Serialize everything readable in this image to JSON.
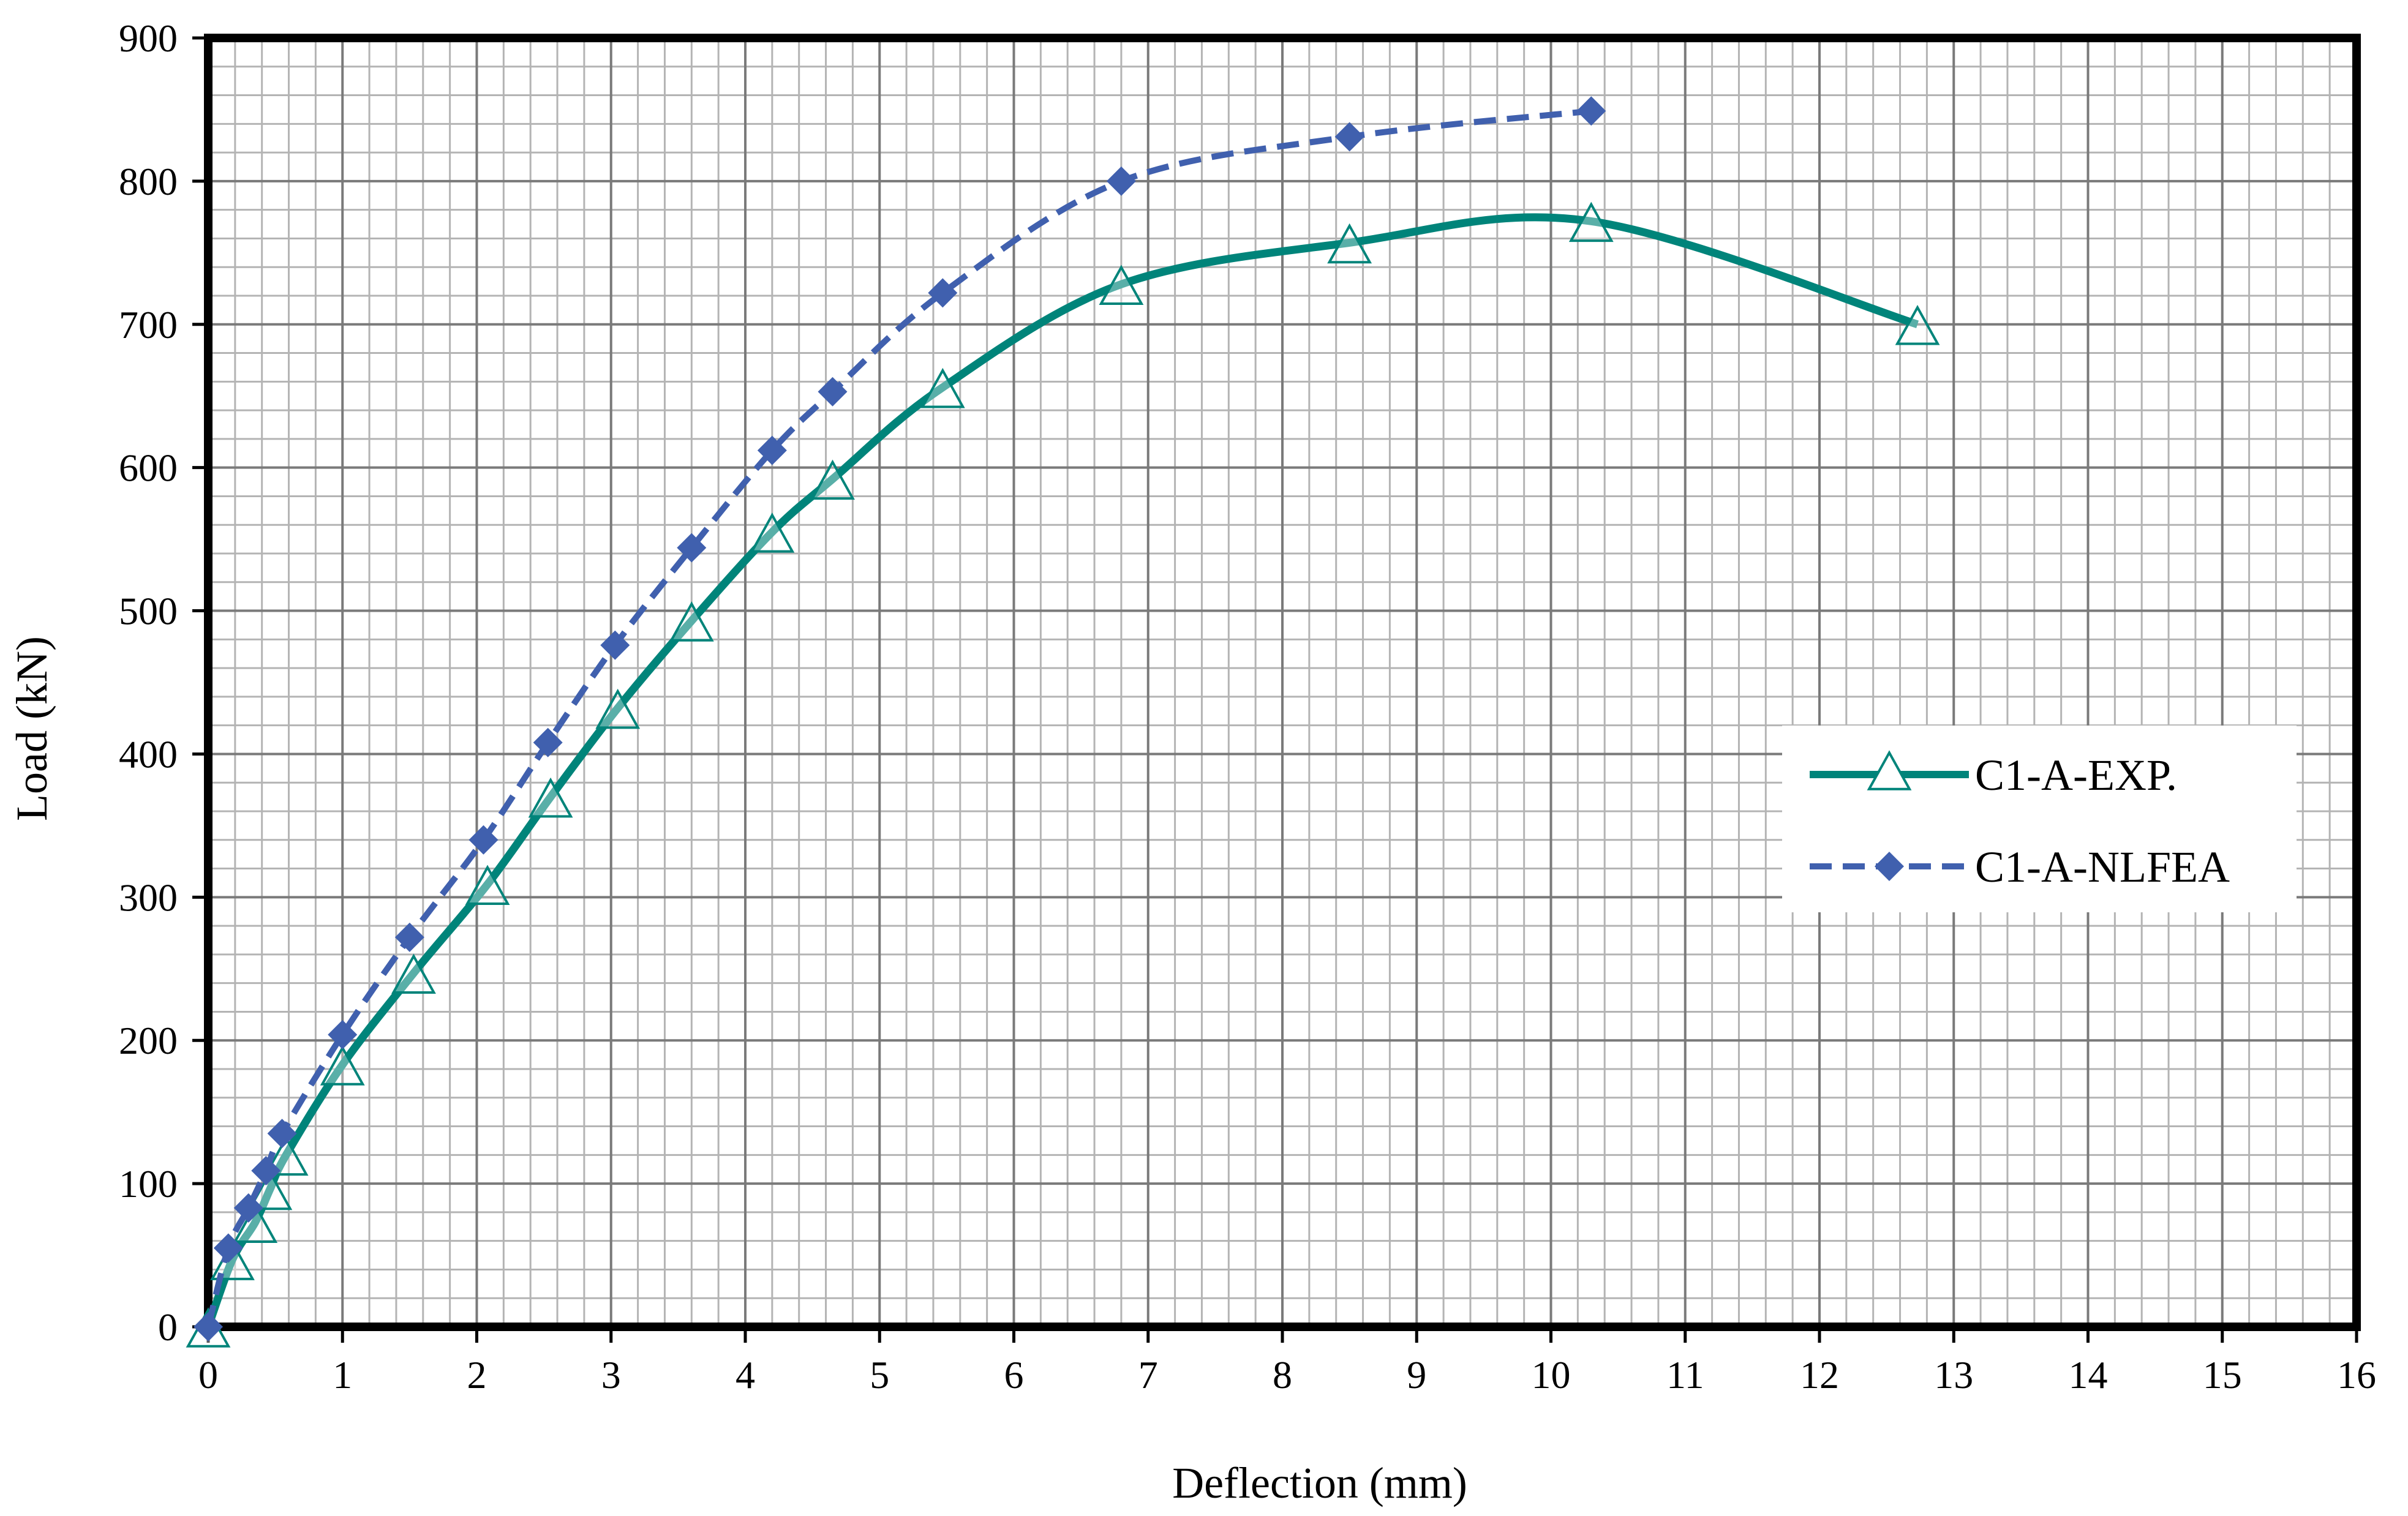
{
  "chart_data": {
    "type": "line",
    "title": "",
    "xlabel": "Deflection (mm)",
    "ylabel": "Load (kN)",
    "xlim": [
      0,
      16
    ],
    "ylim": [
      0,
      900
    ],
    "xticks": [
      0,
      1,
      2,
      3,
      4,
      5,
      6,
      7,
      8,
      9,
      10,
      11,
      12,
      13,
      14,
      15,
      16
    ],
    "yticks": [
      0,
      100,
      200,
      300,
      400,
      500,
      600,
      700,
      800,
      900
    ],
    "x_minor_step": 0.2,
    "y_minor_step": 20,
    "grid": true,
    "legend_position": "center-right",
    "series": [
      {
        "name": "C1-A-EXP.",
        "color": "#00847A",
        "line_style": "solid",
        "marker": "open-triangle",
        "points": [
          [
            0,
            0
          ],
          [
            0.18,
            47
          ],
          [
            0.35,
            73
          ],
          [
            0.46,
            96
          ],
          [
            0.58,
            120
          ],
          [
            1.0,
            183
          ],
          [
            1.53,
            247
          ],
          [
            2.08,
            309
          ],
          [
            2.55,
            370
          ],
          [
            3.05,
            432
          ],
          [
            3.6,
            493
          ],
          [
            4.2,
            555
          ],
          [
            4.65,
            592
          ],
          [
            5.47,
            656
          ],
          [
            6.8,
            728
          ],
          [
            8.5,
            757
          ],
          [
            10.3,
            772
          ],
          [
            12.73,
            700
          ]
        ]
      },
      {
        "name": "C1-A-NLFEA",
        "color": "#4060AE",
        "line_style": "dashed",
        "marker": "filled-diamond",
        "points": [
          [
            0,
            0
          ],
          [
            0.15,
            55
          ],
          [
            0.3,
            83
          ],
          [
            0.43,
            109
          ],
          [
            0.55,
            135
          ],
          [
            1.0,
            204
          ],
          [
            1.5,
            272
          ],
          [
            2.05,
            340
          ],
          [
            2.53,
            408
          ],
          [
            3.03,
            476
          ],
          [
            3.6,
            544
          ],
          [
            4.2,
            612
          ],
          [
            4.65,
            653
          ],
          [
            5.47,
            722
          ],
          [
            6.8,
            800
          ],
          [
            8.5,
            831
          ],
          [
            10.3,
            849
          ]
        ]
      }
    ]
  }
}
